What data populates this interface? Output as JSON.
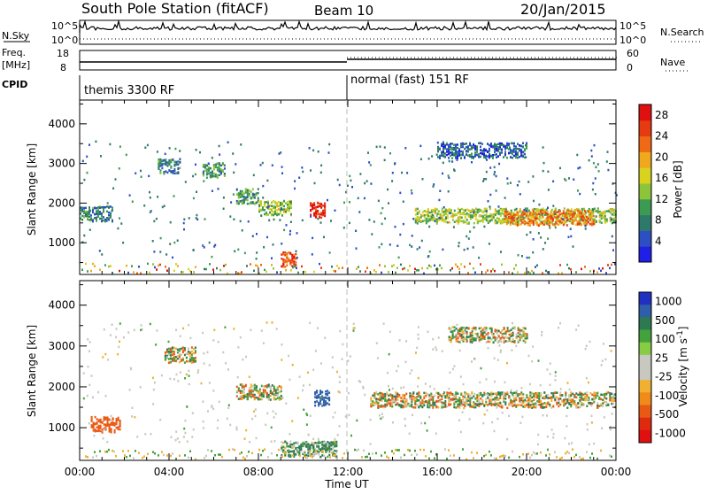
{
  "header": {
    "station": "South Pole Station (fitACF)",
    "beam": "Beam 10",
    "date": "20/Jan/2015"
  },
  "top_panels": {
    "nsky_label": "N.Sky",
    "nsky_ticks": [
      "10^5",
      "10^0"
    ],
    "nsearch_label": "N.Search",
    "nsearch_ticks": [
      "10^5",
      "10^0"
    ],
    "freq_label": "Freq.",
    "freq_unit": "[MHz]",
    "freq_ticks": [
      "18",
      "8"
    ],
    "nave_label": "Nave",
    "nave_ticks": [
      "60",
      "0"
    ],
    "cpid_label": "CPID",
    "cpid_segments": [
      "themis 3300 RF",
      "normal (fast) 151 RF"
    ]
  },
  "colors": {
    "power_scale": [
      "#1f1fe6",
      "#2c4fc4",
      "#2e7a6a",
      "#3c9a52",
      "#8cc53a",
      "#d9d21e",
      "#f0a81c",
      "#ee6a14",
      "#e53a12",
      "#e01010"
    ],
    "velocity_scale": [
      "#2030c0",
      "#2e5fa8",
      "#2e7a50",
      "#44a23c",
      "#86cc44",
      "#c8c8c0",
      "#c8c8c0",
      "#f0b030",
      "#f08a18",
      "#e85a14",
      "#e02a10",
      "#e01010"
    ]
  },
  "chart_data": [
    {
      "type": "heatmap",
      "name_key": "power",
      "xlabel": "Time UT",
      "ylabel": "Slant Range [km]",
      "xlim": [
        0,
        24
      ],
      "ylim": [
        200,
        4600
      ],
      "x_ticks": [
        "00:00",
        "04:00",
        "08:00",
        "12:00",
        "16:00",
        "20:00",
        "00:00"
      ],
      "y_ticks": [
        "1000",
        "2000",
        "3000",
        "4000"
      ],
      "colorbar_label": "Power [dB]",
      "colorbar_ticks": [
        "28",
        "24",
        "20",
        "16",
        "12",
        "8",
        "4"
      ],
      "colorbar_range": [
        0,
        30
      ],
      "echo_bands": [
        {
          "t_start": 0.0,
          "t_end": 1.5,
          "range_center": 1750,
          "value": 8
        },
        {
          "t_start": 3.5,
          "t_end": 4.5,
          "range_center": 2950,
          "value": 8
        },
        {
          "t_start": 5.5,
          "t_end": 6.5,
          "range_center": 2850,
          "value": 10
        },
        {
          "t_start": 7.0,
          "t_end": 8.0,
          "range_center": 2200,
          "value": 10
        },
        {
          "t_start": 8.0,
          "t_end": 9.5,
          "range_center": 1900,
          "value": 14
        },
        {
          "t_start": 9.0,
          "t_end": 9.7,
          "range_center": 600,
          "value": 24
        },
        {
          "t_start": 10.3,
          "t_end": 11.0,
          "range_center": 1850,
          "value": 28
        },
        {
          "t_start": 15.0,
          "t_end": 24.0,
          "range_center": 1700,
          "value": 14
        },
        {
          "t_start": 19.0,
          "t_end": 23.0,
          "range_center": 1650,
          "value": 22
        },
        {
          "t_start": 16.0,
          "t_end": 20.0,
          "range_center": 3350,
          "value": 6
        }
      ]
    },
    {
      "type": "heatmap",
      "name_key": "velocity",
      "xlabel": "Time UT",
      "ylabel": "Slant Range [km]",
      "xlim": [
        0,
        24
      ],
      "ylim": [
        200,
        4600
      ],
      "x_ticks": [
        "00:00",
        "04:00",
        "08:00",
        "12:00",
        "16:00",
        "20:00",
        "00:00"
      ],
      "y_ticks": [
        "1000",
        "2000",
        "3000",
        "4000"
      ],
      "colorbar_label": "Velocity [m s",
      "colorbar_sup": "-1",
      "colorbar_ticks": [
        "1000",
        "500",
        "100",
        "25",
        "-25",
        "-100",
        "-500",
        "-1000"
      ],
      "echo_bands": [
        {
          "t_start": 0.5,
          "t_end": 1.8,
          "range_center": 1100,
          "value": -300
        },
        {
          "t_start": 3.8,
          "t_end": 5.2,
          "range_center": 2800,
          "value": 0
        },
        {
          "t_start": 7.0,
          "t_end": 9.0,
          "range_center": 1900,
          "value": 0
        },
        {
          "t_start": 9.0,
          "t_end": 11.5,
          "range_center": 500,
          "value": 150
        },
        {
          "t_start": 10.5,
          "t_end": 11.2,
          "range_center": 1750,
          "value": 700
        },
        {
          "t_start": 13.0,
          "t_end": 24.0,
          "range_center": 1700,
          "value": 0
        },
        {
          "t_start": 16.5,
          "t_end": 20.0,
          "range_center": 3300,
          "value": 0
        }
      ]
    }
  ]
}
